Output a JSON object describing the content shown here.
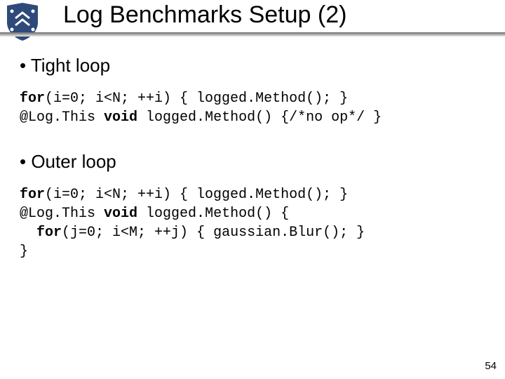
{
  "slide": {
    "title": "Log Benchmarks Setup (2)",
    "page_number": "54",
    "background_color": "#ffffff",
    "text_color": "#000000",
    "title_fontsize": 34,
    "bullet_fontsize": 26,
    "code_fontsize": 20,
    "code_font": "Courier New",
    "body_font": "Arial",
    "header_gradient": [
      "#6d6d6d",
      "#a9a9a9",
      "#e8e8e8"
    ]
  },
  "logo": {
    "name": "shield-logo",
    "shield_color": "#2f4a7a",
    "accent_color": "#ffffff"
  },
  "sections": [
    {
      "bullet": "Tight loop",
      "code": [
        {
          "segments": [
            {
              "t": "for",
              "kw": true
            },
            {
              "t": "(i=0; i<N; ++i) { logged.Method(); }",
              "kw": false
            }
          ]
        },
        {
          "segments": [
            {
              "t": "@Log.This ",
              "kw": false
            },
            {
              "t": "void",
              "kw": true
            },
            {
              "t": " logged.Method() {/*no op*/ }",
              "kw": false
            }
          ]
        }
      ]
    },
    {
      "bullet": "Outer loop",
      "code": [
        {
          "segments": [
            {
              "t": "for",
              "kw": true
            },
            {
              "t": "(i=0; i<N; ++i) { logged.Method(); }",
              "kw": false
            }
          ]
        },
        {
          "segments": [
            {
              "t": "@Log.This ",
              "kw": false
            },
            {
              "t": "void",
              "kw": true
            },
            {
              "t": " logged.Method() {",
              "kw": false
            }
          ]
        },
        {
          "segments": [
            {
              "t": "  ",
              "kw": false
            },
            {
              "t": "for",
              "kw": true
            },
            {
              "t": "(j=0; i<M; ++j) { gaussian.Blur(); }",
              "kw": false
            }
          ]
        },
        {
          "segments": [
            {
              "t": "}",
              "kw": false
            }
          ]
        }
      ]
    }
  ]
}
